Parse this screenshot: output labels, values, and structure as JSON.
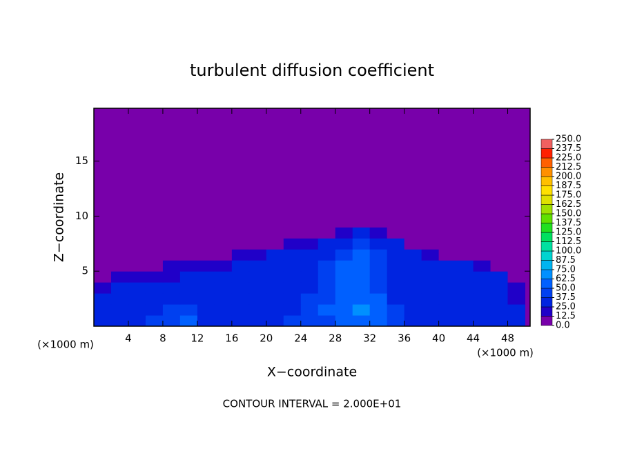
{
  "chart_data": {
    "type": "heatmap",
    "title": "turbulent diffusion coefficient",
    "x_label": "X−coordinate",
    "y_label": "Z−coordinate",
    "x_unit": "(×1000 m)",
    "y_unit": "(×1000 m)",
    "annotation": "CONTOUR INTERVAL = 2.000E+01",
    "xlim": [
      0,
      50.6
    ],
    "ylim": [
      0,
      19.8
    ],
    "xticks": [
      4,
      8,
      12,
      16,
      20,
      24,
      28,
      32,
      36,
      40,
      44,
      48
    ],
    "yticks": [
      5,
      10,
      15
    ],
    "x": [
      1,
      3,
      5,
      7,
      9,
      11,
      13,
      15,
      17,
      19,
      21,
      23,
      25,
      27,
      29,
      31,
      33,
      35,
      37,
      39,
      41,
      43,
      45,
      47,
      49
    ],
    "z": [
      0.5,
      1.5,
      2.5,
      3.5,
      4.5,
      5.5,
      6.5,
      7.5,
      8.5,
      9.5
    ],
    "values": [
      [
        30,
        35,
        30,
        40,
        45,
        50,
        35,
        30,
        30,
        35,
        35,
        40,
        40,
        45,
        60,
        60,
        55,
        40,
        35,
        30,
        30,
        30,
        30,
        30,
        30
      ],
      [
        25,
        30,
        25,
        35,
        45,
        40,
        30,
        30,
        30,
        30,
        35,
        35,
        40,
        50,
        60,
        65,
        55,
        40,
        35,
        30,
        30,
        30,
        30,
        30,
        25
      ],
      [
        25,
        25,
        30,
        30,
        25,
        30,
        30,
        25,
        30,
        30,
        30,
        35,
        40,
        45,
        55,
        60,
        50,
        35,
        30,
        30,
        30,
        25,
        30,
        30,
        20
      ],
      [
        20,
        25,
        30,
        25,
        25,
        30,
        30,
        30,
        25,
        30,
        30,
        30,
        35,
        40,
        55,
        60,
        45,
        35,
        30,
        30,
        30,
        35,
        30,
        30,
        15
      ],
      [
        10,
        20,
        20,
        20,
        20,
        25,
        25,
        25,
        30,
        30,
        30,
        30,
        35,
        40,
        50,
        55,
        45,
        35,
        30,
        30,
        30,
        30,
        30,
        25,
        10
      ],
      [
        0,
        0,
        5,
        10,
        15,
        15,
        20,
        20,
        25,
        30,
        30,
        30,
        30,
        40,
        50,
        55,
        45,
        35,
        30,
        30,
        25,
        25,
        20,
        10,
        0
      ],
      [
        0,
        0,
        0,
        0,
        0,
        0,
        0,
        10,
        15,
        20,
        25,
        25,
        30,
        35,
        45,
        50,
        40,
        35,
        25,
        20,
        10,
        5,
        0,
        0,
        0
      ],
      [
        0,
        0,
        0,
        0,
        0,
        0,
        0,
        0,
        0,
        5,
        10,
        15,
        20,
        25,
        35,
        40,
        35,
        25,
        10,
        0,
        0,
        0,
        0,
        0,
        0
      ],
      [
        0,
        0,
        0,
        0,
        0,
        0,
        0,
        0,
        0,
        0,
        0,
        0,
        5,
        10,
        20,
        25,
        15,
        5,
        0,
        0,
        0,
        0,
        0,
        0,
        0
      ],
      [
        0,
        0,
        0,
        0,
        0,
        0,
        0,
        0,
        0,
        0,
        0,
        0,
        0,
        0,
        0,
        0,
        0,
        0,
        0,
        0,
        0,
        0,
        0,
        0,
        0
      ]
    ],
    "colorbar_lim": [
      0,
      250
    ],
    "colorbar_ticks": [
      {
        "value": 0,
        "label": "0.0"
      },
      12.5,
      {
        "value": 25,
        "label": "25.0"
      },
      37.5,
      {
        "value": 50,
        "label": "50.0"
      },
      62.5,
      {
        "value": 75,
        "label": "75.0"
      },
      87.5,
      {
        "value": 100,
        "label": "100.0"
      },
      112.5,
      {
        "value": 125,
        "label": "125.0"
      },
      137.5,
      {
        "value": 150,
        "label": "150.0"
      },
      162.5,
      {
        "value": 175,
        "label": "175.0"
      },
      187.5,
      {
        "value": 200,
        "label": "200.0"
      },
      212.5,
      {
        "value": 225,
        "label": "225.0"
      },
      237.5,
      {
        "value": 250,
        "label": "250.0"
      }
    ],
    "colors": [
      "#7800aa",
      "#2000c8",
      "#0024e0",
      "#0040f0",
      "#0060ff",
      "#0090ff",
      "#00b4f0",
      "#00d4d0",
      "#00e0a0",
      "#00e060",
      "#20e020",
      "#60e000",
      "#a0e000",
      "#e0e000",
      "#ffe000",
      "#ffc000",
      "#ff9000",
      "#ff6000",
      "#ff2000",
      "#f06060"
    ]
  }
}
